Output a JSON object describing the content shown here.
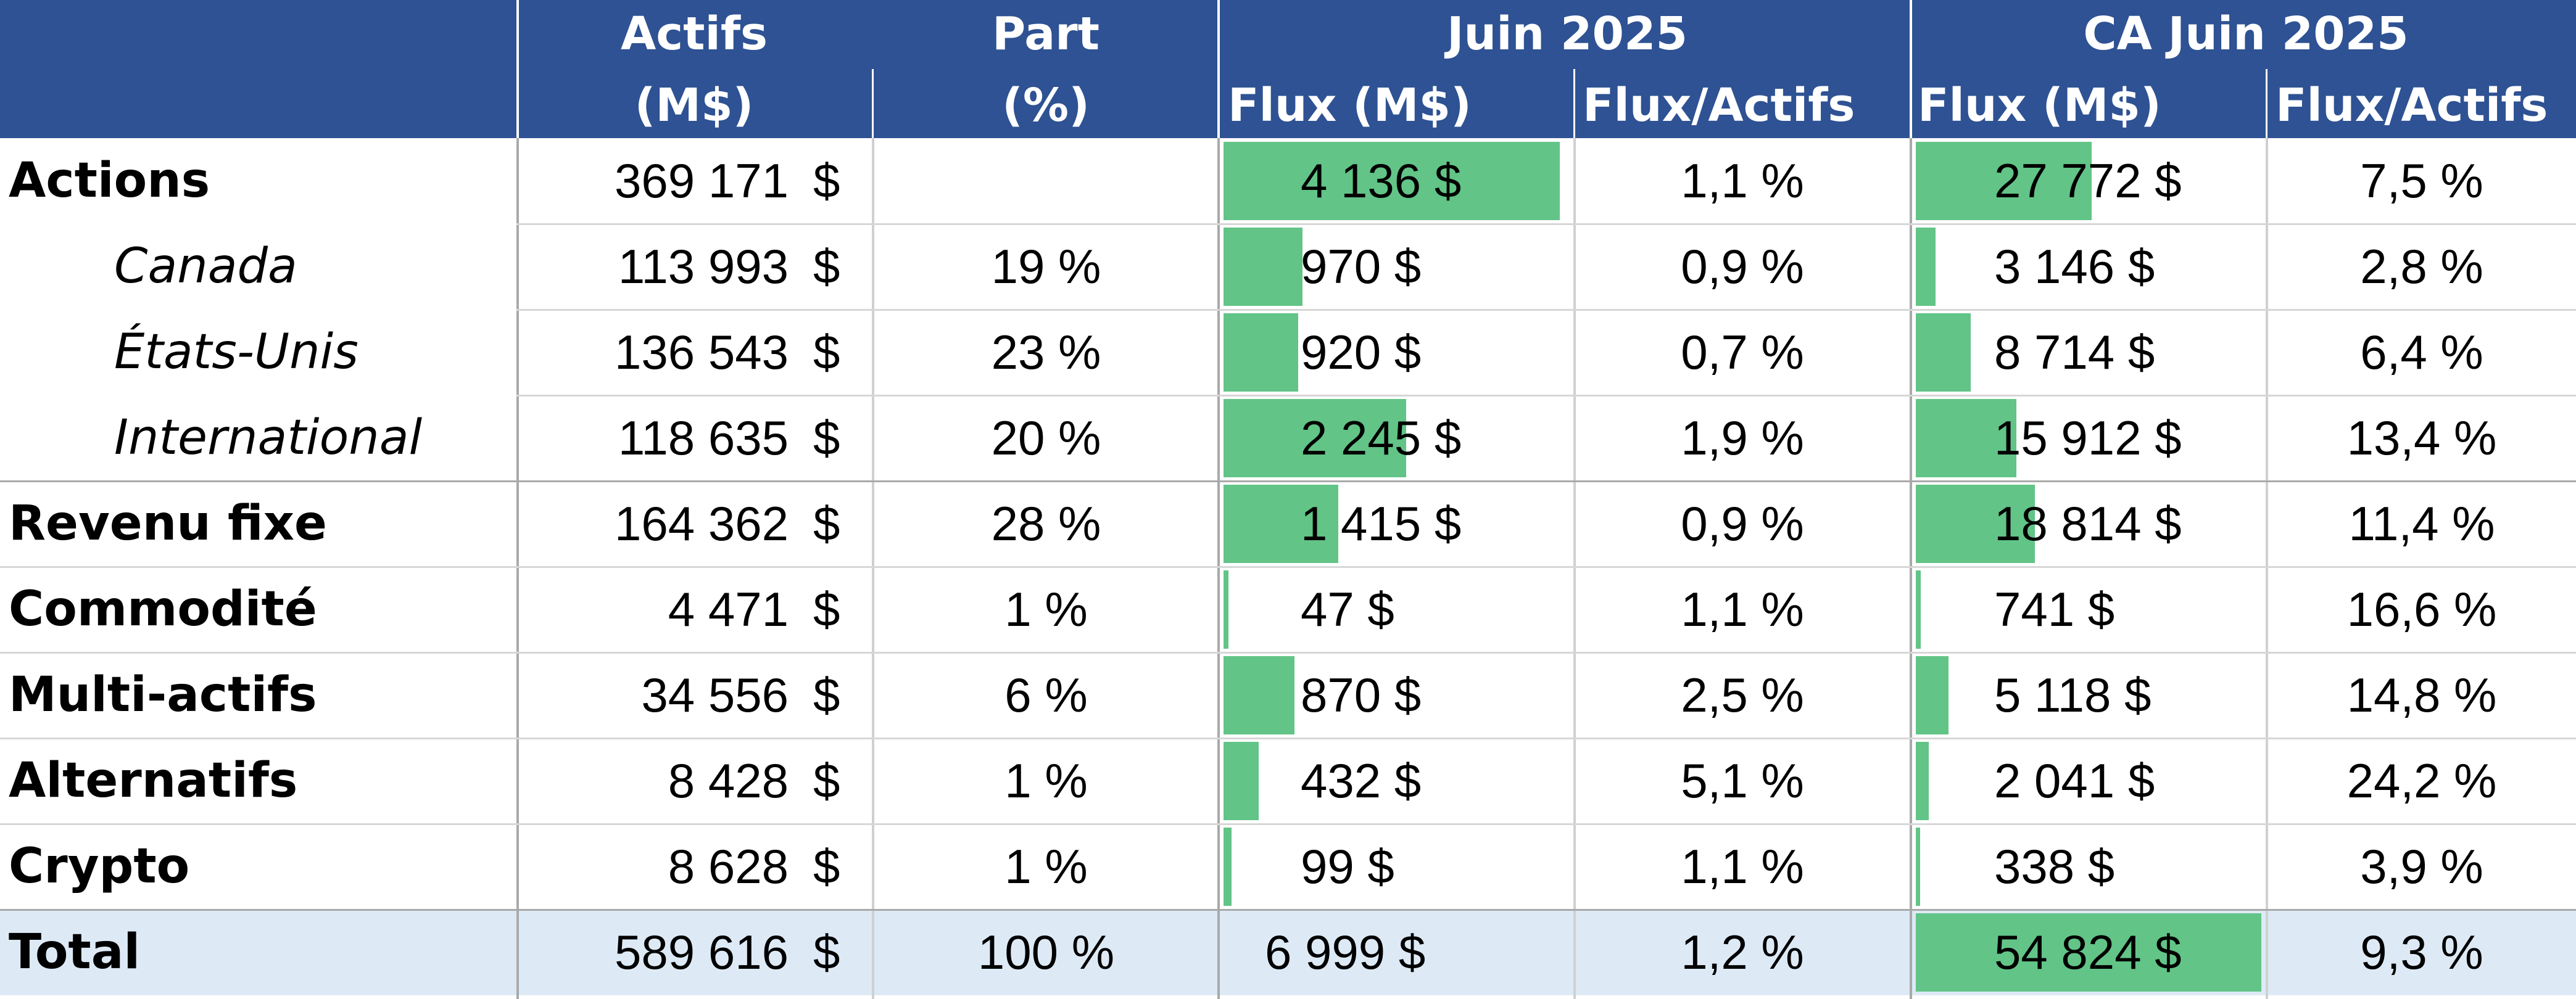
{
  "header": {
    "actifs_line1": "Actifs",
    "actifs_line2": "(M$)",
    "part_line1": "Part",
    "part_line2": "(%)",
    "group_month": "Juin 2025",
    "group_ytd": "CA Juin 2025",
    "flux_label": "Flux (M$)",
    "ratio_label": "Flux/Actifs"
  },
  "rows": [
    {
      "label": "Actions",
      "sub": false,
      "actifs": "369 171",
      "part": "",
      "flux": "4 136 $",
      "flux_value": 4136,
      "ratio": "1,1 %",
      "ca_flux": "27 772 $",
      "ca_flux_value": 27772,
      "ca_ratio": "7,5 %"
    },
    {
      "label": "Canada",
      "sub": true,
      "actifs": "113 993",
      "part": "19 %",
      "flux": "970 $",
      "flux_value": 970,
      "ratio": "0,9 %",
      "ca_flux": "3 146 $",
      "ca_flux_value": 3146,
      "ca_ratio": "2,8 %"
    },
    {
      "label": "États-Unis",
      "sub": true,
      "actifs": "136 543",
      "part": "23 %",
      "flux": "920 $",
      "flux_value": 920,
      "ratio": "0,7 %",
      "ca_flux": "8 714 $",
      "ca_flux_value": 8714,
      "ca_ratio": "6,4 %"
    },
    {
      "label": "International",
      "sub": true,
      "actifs": "118 635",
      "part": "20 %",
      "flux": "2 245 $",
      "flux_value": 2245,
      "ratio": "1,9 %",
      "ca_flux": "15 912 $",
      "ca_flux_value": 15912,
      "ca_ratio": "13,4 %"
    },
    {
      "label": "Revenu fixe",
      "sub": false,
      "actifs": "164 362",
      "part": "28 %",
      "flux": "1 415 $",
      "flux_value": 1415,
      "ratio": "0,9 %",
      "ca_flux": "18 814 $",
      "ca_flux_value": 18814,
      "ca_ratio": "11,4 %"
    },
    {
      "label": "Commodité",
      "sub": false,
      "actifs": "4 471",
      "part": "1 %",
      "flux": "47 $",
      "flux_value": 47,
      "ratio": "1,1 %",
      "ca_flux": "741 $",
      "ca_flux_value": 741,
      "ca_ratio": "16,6 %"
    },
    {
      "label": "Multi-actifs",
      "sub": false,
      "actifs": "34 556",
      "part": "6 %",
      "flux": "870 $",
      "flux_value": 870,
      "ratio": "2,5 %",
      "ca_flux": "5 118 $",
      "ca_flux_value": 5118,
      "ca_ratio": "14,8 %"
    },
    {
      "label": "Alternatifs",
      "sub": false,
      "actifs": "8 428",
      "part": "1 %",
      "flux": "432 $",
      "flux_value": 432,
      "ratio": "5,1 %",
      "ca_flux": "2 041 $",
      "ca_flux_value": 2041,
      "ca_ratio": "24,2 %"
    },
    {
      "label": "Crypto",
      "sub": false,
      "actifs": "8 628",
      "part": "1 %",
      "flux": "99 $",
      "flux_value": 99,
      "ratio": "1,1 %",
      "ca_flux": "338 $",
      "ca_flux_value": 338,
      "ca_ratio": "3,9 %"
    }
  ],
  "total": {
    "label": "Total",
    "actifs": "589 616",
    "part": "100 %",
    "flux": "6 999 $",
    "ratio": "1,2 %",
    "ca_flux": "54 824 $",
    "ca_flux_value": 54824,
    "ca_ratio": "9,3 %"
  },
  "currency_symbol": "$",
  "colors": {
    "header_bg": "#2e5293",
    "header_text": "#ffffff",
    "data_bar": "#62c487",
    "total_bg": "#ddeaf6"
  }
}
